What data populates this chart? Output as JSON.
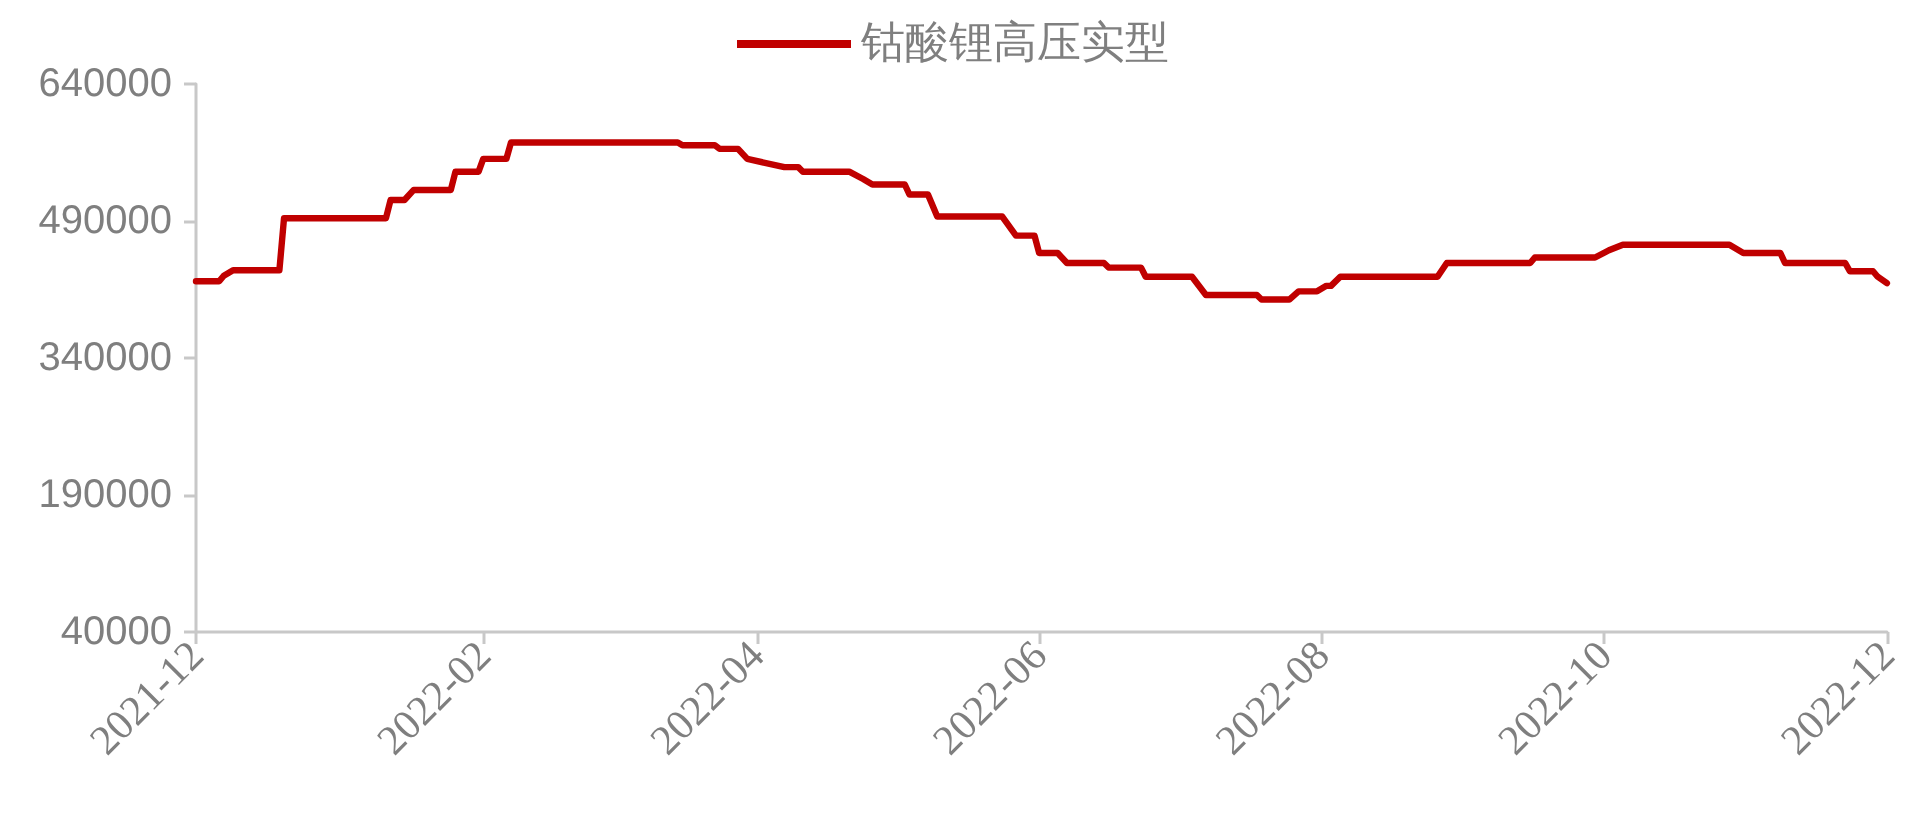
{
  "chart_data": {
    "type": "line",
    "x": [
      "2021-12-01",
      "2021-12-06",
      "2021-12-07",
      "2021-12-09",
      "2021-12-19",
      "2021-12-20",
      "2022-01-11",
      "2022-01-12",
      "2022-01-15",
      "2022-01-17",
      "2022-01-25",
      "2022-01-26",
      "2022-01-31",
      "2022-02-01",
      "2022-02-06",
      "2022-02-07",
      "2022-03-15",
      "2022-03-16",
      "2022-03-23",
      "2022-03-24",
      "2022-03-28",
      "2022-03-30",
      "2022-04-07",
      "2022-04-10",
      "2022-04-11",
      "2022-04-21",
      "2022-04-24",
      "2022-04-26",
      "2022-05-03",
      "2022-05-04",
      "2022-05-08",
      "2022-05-10",
      "2022-05-24",
      "2022-05-27",
      "2022-05-31",
      "2022-06-01",
      "2022-06-05",
      "2022-06-07",
      "2022-06-15",
      "2022-06-16",
      "2022-06-23",
      "2022-06-24",
      "2022-07-04",
      "2022-07-07",
      "2022-07-18",
      "2022-07-19",
      "2022-07-25",
      "2022-07-27",
      "2022-07-31",
      "2022-08-02",
      "2022-08-03",
      "2022-08-05",
      "2022-08-26",
      "2022-08-28",
      "2022-09-15",
      "2022-09-16",
      "2022-09-29",
      "2022-10-02",
      "2022-10-05",
      "2022-10-28",
      "2022-10-31",
      "2022-11-08",
      "2022-11-09",
      "2022-11-22",
      "2022-11-23",
      "2022-11-28",
      "2022-11-29",
      "2022-12-01"
    ],
    "series": [
      {
        "name": "钴酸锂高压实型",
        "color": "#c00000",
        "values": [
          424000,
          424000,
          430000,
          436000,
          436000,
          493000,
          493000,
          513000,
          513000,
          524000,
          524000,
          544000,
          544000,
          558000,
          558000,
          576000,
          576000,
          573000,
          573000,
          569000,
          569000,
          558000,
          549000,
          549000,
          544000,
          544000,
          536000,
          530000,
          530000,
          519000,
          519000,
          495000,
          495000,
          474000,
          474000,
          455000,
          455000,
          444000,
          444000,
          439000,
          439000,
          429000,
          429000,
          409000,
          409000,
          404000,
          404000,
          413000,
          413000,
          419000,
          419000,
          429000,
          429000,
          444000,
          444000,
          450000,
          450000,
          458000,
          464000,
          464000,
          455000,
          455000,
          444000,
          444000,
          435000,
          435000,
          429000,
          422000
        ]
      }
    ],
    "xlim": [
      "2021-12-01",
      "2022-12-01"
    ],
    "xticks": [
      "2021-12",
      "2022-02",
      "2022-04",
      "2022-06",
      "2022-08",
      "2022-10",
      "2022-12"
    ],
    "ylim": [
      40000,
      640000
    ],
    "yticks": [
      40000,
      190000,
      340000,
      490000,
      640000
    ],
    "legend": "top",
    "grid": false,
    "marker": "none",
    "line_style": "solid"
  }
}
